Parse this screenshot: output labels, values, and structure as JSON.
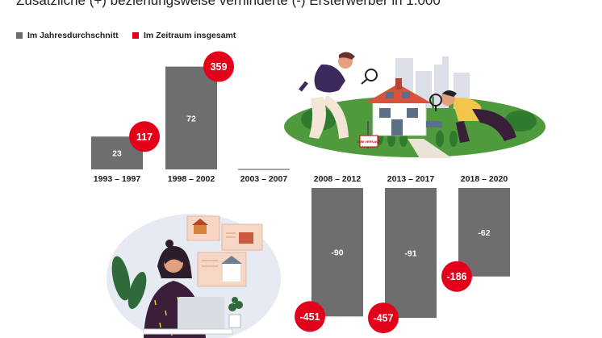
{
  "colors": {
    "gray": "#6e6e6e",
    "red": "#e2001a",
    "gray_line": "#8a8a8a"
  },
  "chart_data": {
    "type": "bar",
    "title": "Zusätzliche (+) beziehungsweise verhinderte (-) Ersterwerber in 1.000",
    "categories": [
      "1993 – 1997",
      "1998 – 2002",
      "2003 – 2007",
      "2008 – 2012",
      "2013 – 2017",
      "2018 – 2020"
    ],
    "series": [
      {
        "name": "Im Jahresdurchschnitt",
        "values": [
          23,
          72,
          0,
          -90,
          -91,
          -62
        ],
        "color": "#6e6e6e"
      },
      {
        "name": "Im Zeitraum insgesamt",
        "values": [
          117,
          359,
          0,
          -451,
          -457,
          -186
        ],
        "color": "#e2001a"
      }
    ],
    "value_labels": {
      "annual": [
        "23",
        "72",
        "",
        "-90",
        "-91",
        "-62"
      ],
      "total": [
        "117",
        "359",
        "",
        "-451",
        "-457",
        "-186"
      ]
    },
    "legend_position": "top-left",
    "grid": false
  },
  "illustrations": {
    "house_sign": "ZUM VERKAUF",
    "icons": [
      "house-search-illustration",
      "woman-laptop-illustration"
    ]
  }
}
